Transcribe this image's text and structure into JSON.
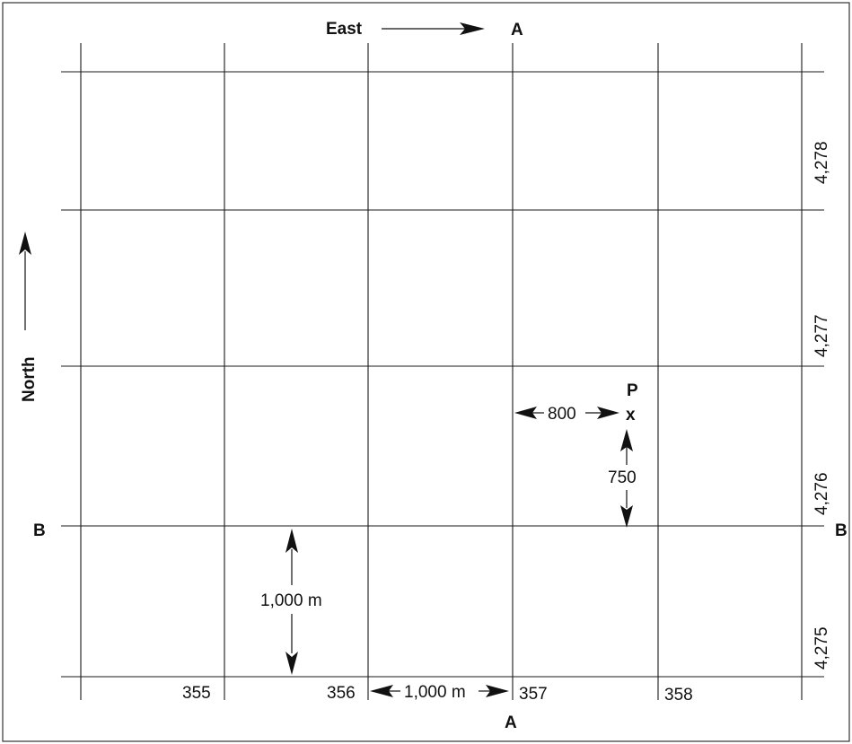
{
  "compass": {
    "east_label": "East",
    "north_label": "North"
  },
  "section_markers": {
    "a_top": "A",
    "a_bottom": "A",
    "b_left": "B",
    "b_right": "B"
  },
  "easting_labels": [
    "355",
    "356",
    "357",
    "358"
  ],
  "northing_labels": [
    "4,278",
    "4,277",
    "4,276",
    "4,275"
  ],
  "point": {
    "label": "P",
    "marker": "x",
    "east_offset": "800",
    "north_offset": "750"
  },
  "scale": {
    "vertical_label": "1,000 m",
    "horizontal_label": "1,000 m"
  }
}
